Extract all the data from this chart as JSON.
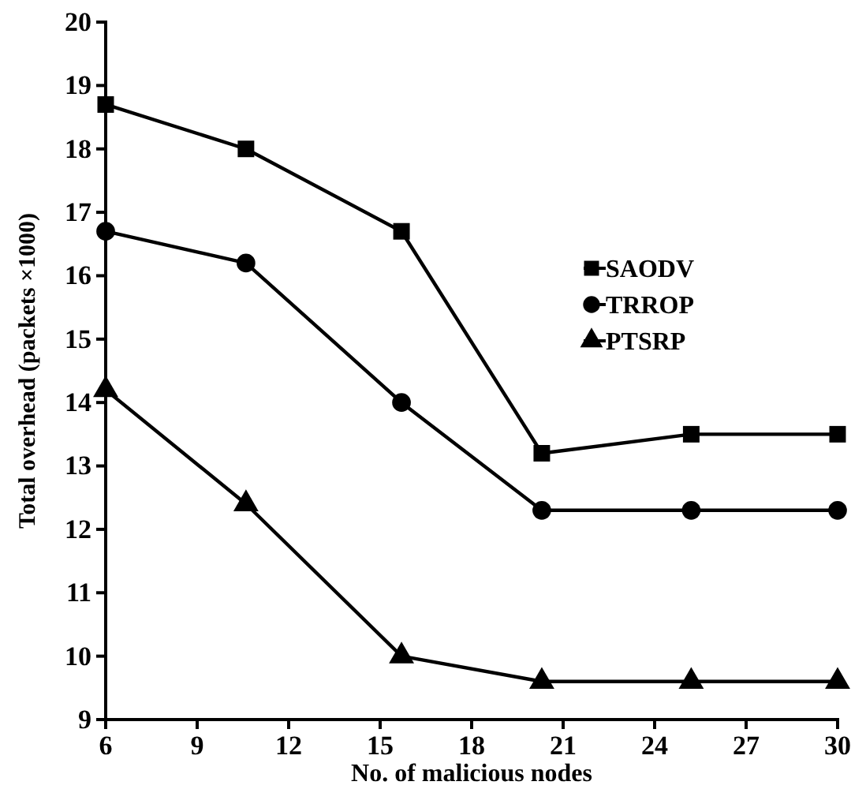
{
  "chart_data": {
    "type": "line",
    "xlabel": "No. of malicious nodes",
    "ylabel": "Total overhead (packets ×1000)",
    "x": [
      6,
      10.6,
      15.7,
      20.3,
      25.2,
      30
    ],
    "xlim": [
      6,
      30
    ],
    "xticks": [
      6,
      9,
      12,
      15,
      18,
      21,
      24,
      27,
      30
    ],
    "ylim": [
      9,
      20
    ],
    "yticks": [
      9,
      10,
      11,
      12,
      13,
      14,
      15,
      16,
      17,
      18,
      19,
      20
    ],
    "grid": false,
    "legend": "right",
    "line_style": "solid",
    "series": [
      {
        "name": "SAODV",
        "color": "#000000",
        "marker": "square",
        "values": [
          18.7,
          18.0,
          16.7,
          13.2,
          13.5,
          13.5
        ]
      },
      {
        "name": "TRROP",
        "color": "#000000",
        "marker": "circle",
        "values": [
          16.7,
          16.2,
          14.0,
          12.3,
          12.3,
          12.3
        ]
      },
      {
        "name": "PTSRP",
        "color": "#000000",
        "marker": "triangle",
        "values": [
          14.2,
          12.4,
          10.0,
          9.6,
          9.6,
          9.6
        ]
      }
    ]
  }
}
